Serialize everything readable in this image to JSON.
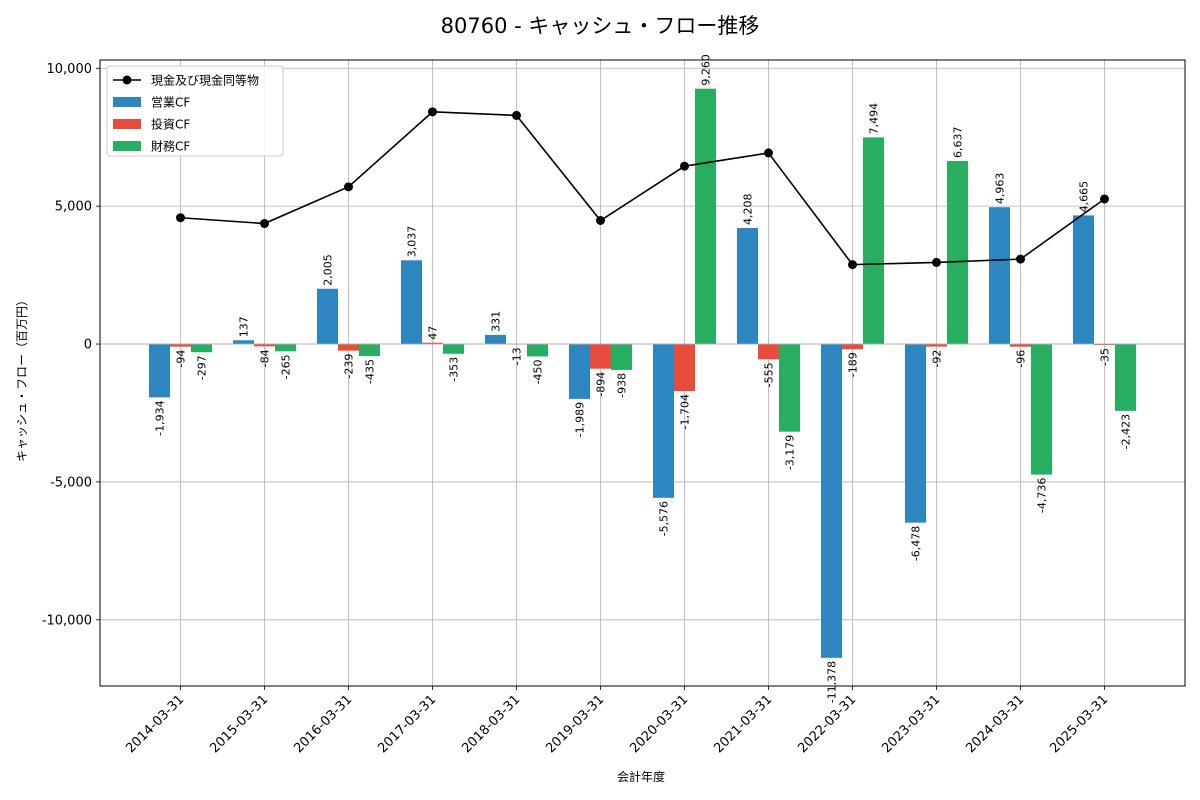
{
  "chart_data": {
    "type": "bar",
    "title": "80760 - キャッシュ・フロー推移",
    "xlabel": "会計年度",
    "ylabel": "キャッシュ・フロー（百万円）",
    "ylim": [
      -12400,
      10300
    ],
    "yticks": [
      10000,
      5000,
      0,
      -5000,
      -10000
    ],
    "ytick_labels": [
      "10,000",
      "5,000",
      "0",
      "-5,000",
      "-10,000"
    ],
    "grid": true,
    "legend_position": "top-left",
    "categories": [
      "2014-03-31",
      "2015-03-31",
      "2016-03-31",
      "2017-03-31",
      "2018-03-31",
      "2019-03-31",
      "2020-03-31",
      "2021-03-31",
      "2022-03-31",
      "2023-03-31",
      "2024-03-31",
      "2025-03-31"
    ],
    "series": [
      {
        "name": "営業CF",
        "kind": "bar",
        "color": "#2e86c1",
        "values": [
          -1934,
          137,
          2005,
          3037,
          331,
          -1989,
          -5576,
          4208,
          -11378,
          -6478,
          4963,
          4665
        ],
        "labels": [
          "-1,934",
          "137",
          "2,005",
          "3,037",
          "331",
          "-1,989",
          "-5,576",
          "4,208",
          "-11,378",
          "-6,478",
          "4,963",
          "4,665"
        ]
      },
      {
        "name": "投資CF",
        "kind": "bar",
        "color": "#e74c3c",
        "values": [
          -94,
          -84,
          -239,
          47,
          -13,
          -894,
          -1704,
          -555,
          -189,
          -92,
          -96,
          -35
        ],
        "labels": [
          "-94",
          "-84",
          "-239",
          "47",
          "-13",
          "-894",
          "-1,704",
          "-555",
          "-189",
          "-92",
          "-96",
          "-35"
        ]
      },
      {
        "name": "財務CF",
        "kind": "bar",
        "color": "#27ae60",
        "values": [
          -297,
          -265,
          -435,
          -353,
          -450,
          -938,
          9260,
          -3179,
          7494,
          6637,
          -4736,
          -2423
        ],
        "labels": [
          "-297",
          "-265",
          "-435",
          "-353",
          "-450",
          "-938",
          "9,260",
          "-3,179",
          "7,494",
          "6,637",
          "-4,736",
          "-2,423"
        ]
      },
      {
        "name": "現金及び現金同等物",
        "kind": "line",
        "color": "#000000",
        "values": [
          4580,
          4370,
          5700,
          8420,
          8290,
          4480,
          6450,
          6930,
          2880,
          2960,
          3080,
          5260
        ]
      }
    ]
  }
}
